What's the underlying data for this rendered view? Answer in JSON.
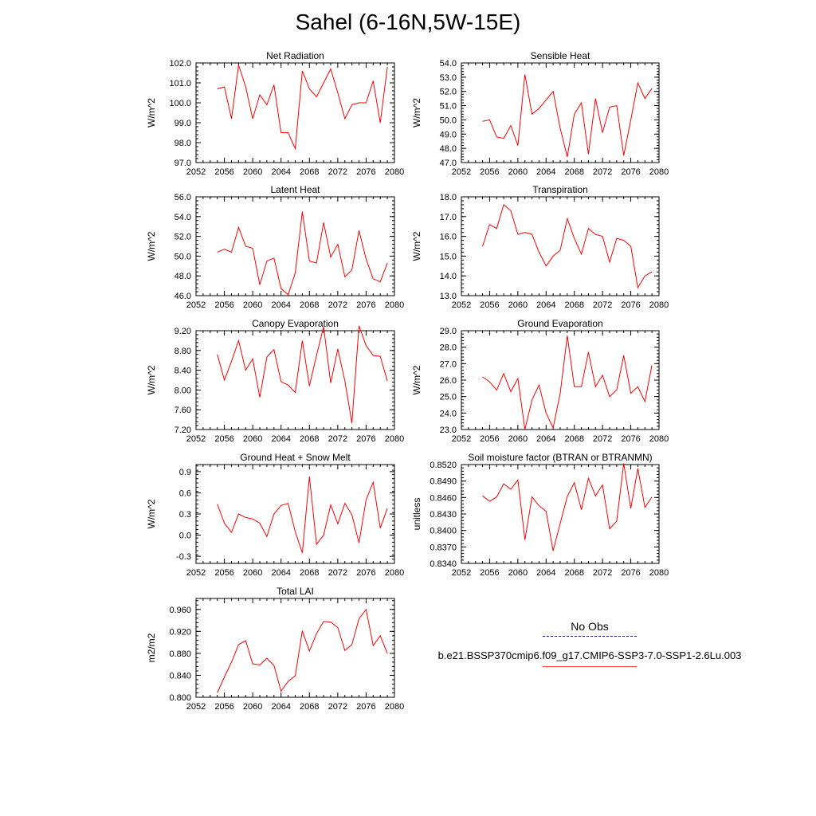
{
  "title": "Sahel (6-16N,5W-15E)",
  "legend": {
    "obs_label": "No Obs",
    "model_label": "b.e21.BSSP370cmip6.f09_g17.CMIP6-SSP3-7.0-SSP1-2.6Lu.003",
    "obs_color": "#2222aa",
    "model_color": "#ff0000"
  },
  "chart_data": [
    {
      "type": "line",
      "title": "Net Radiation",
      "ylabel": "W/m^2",
      "xlim": [
        2052,
        2080
      ],
      "ylim": [
        97.0,
        102.0
      ],
      "xticks": [
        "2052",
        "2056",
        "2060",
        "2064",
        "2068",
        "2072",
        "2076",
        "2080"
      ],
      "yticks": [
        "97.0",
        "98.0",
        "99.0",
        "100.0",
        "101.0",
        "102.0"
      ],
      "x": [
        2055,
        2056,
        2057,
        2058,
        2059,
        2060,
        2061,
        2062,
        2063,
        2064,
        2065,
        2066,
        2067,
        2068,
        2069,
        2070,
        2071,
        2072,
        2073,
        2074,
        2075,
        2076,
        2077,
        2078,
        2079
      ],
      "series": [
        {
          "values": [
            100.7,
            100.8,
            99.2,
            101.9,
            100.8,
            99.2,
            100.4,
            99.9,
            100.9,
            98.5,
            98.5,
            97.7,
            101.6,
            100.7,
            100.3,
            101.0,
            101.7,
            100.5,
            99.2,
            99.9,
            100.0,
            100.0,
            101.1,
            99.0,
            101.8
          ]
        }
      ]
    },
    {
      "type": "line",
      "title": "Sensible Heat",
      "ylabel": "W/m^2",
      "xlim": [
        2052,
        2080
      ],
      "ylim": [
        47.0,
        54.0
      ],
      "xticks": [
        "2052",
        "2056",
        "2060",
        "2064",
        "2068",
        "2072",
        "2076",
        "2080"
      ],
      "yticks": [
        "47.0",
        "48.0",
        "49.0",
        "50.0",
        "51.0",
        "52.0",
        "53.0",
        "54.0"
      ],
      "x": [
        2055,
        2056,
        2057,
        2058,
        2059,
        2060,
        2061,
        2062,
        2063,
        2064,
        2065,
        2066,
        2067,
        2068,
        2069,
        2070,
        2071,
        2072,
        2073,
        2074,
        2075,
        2076,
        2077,
        2078,
        2079
      ],
      "series": [
        {
          "values": [
            49.9,
            50.0,
            48.8,
            48.7,
            49.6,
            48.2,
            53.2,
            50.4,
            50.8,
            51.4,
            52.0,
            49.4,
            47.4,
            50.4,
            51.2,
            47.6,
            51.5,
            49.1,
            50.9,
            51.0,
            47.5,
            50.0,
            52.6,
            51.5,
            52.2
          ]
        }
      ]
    },
    {
      "type": "line",
      "title": "Latent Heat",
      "ylabel": "W/m^2",
      "xlim": [
        2052,
        2080
      ],
      "ylim": [
        46.0,
        56.0
      ],
      "xticks": [
        "2052",
        "2056",
        "2060",
        "2064",
        "2068",
        "2072",
        "2076",
        "2080"
      ],
      "yticks": [
        "46.0",
        "48.0",
        "50.0",
        "52.0",
        "54.0",
        "56.0"
      ],
      "x": [
        2055,
        2056,
        2057,
        2058,
        2059,
        2060,
        2061,
        2062,
        2063,
        2064,
        2065,
        2066,
        2067,
        2068,
        2069,
        2070,
        2071,
        2072,
        2073,
        2074,
        2075,
        2076,
        2077,
        2078,
        2079
      ],
      "series": [
        {
          "values": [
            50.4,
            50.7,
            50.4,
            52.9,
            51.0,
            50.8,
            47.1,
            49.5,
            49.8,
            46.7,
            46.1,
            48.3,
            54.5,
            49.5,
            49.3,
            53.4,
            49.9,
            51.2,
            47.9,
            48.6,
            52.6,
            49.7,
            47.7,
            47.4,
            49.3
          ]
        }
      ]
    },
    {
      "type": "line",
      "title": "Transpiration",
      "ylabel": "W/m^2",
      "xlim": [
        2052,
        2080
      ],
      "ylim": [
        13.0,
        18.0
      ],
      "xticks": [
        "2052",
        "2056",
        "2060",
        "2064",
        "2068",
        "2072",
        "2076",
        "2080"
      ],
      "yticks": [
        "13.0",
        "14.0",
        "15.0",
        "16.0",
        "17.0",
        "18.0"
      ],
      "x": [
        2055,
        2056,
        2057,
        2058,
        2059,
        2060,
        2061,
        2062,
        2063,
        2064,
        2065,
        2066,
        2067,
        2068,
        2069,
        2070,
        2071,
        2072,
        2073,
        2074,
        2075,
        2076,
        2077,
        2078,
        2079
      ],
      "series": [
        {
          "values": [
            15.5,
            16.6,
            16.4,
            17.6,
            17.3,
            16.1,
            16.2,
            16.1,
            15.2,
            14.5,
            15.0,
            15.3,
            16.9,
            15.9,
            15.1,
            16.4,
            16.1,
            16.0,
            14.7,
            15.9,
            15.8,
            15.5,
            13.4,
            14.0,
            14.2
          ]
        }
      ]
    },
    {
      "type": "line",
      "title": "Canopy Evaporation",
      "ylabel": "W/m^2",
      "xlim": [
        2052,
        2080
      ],
      "ylim": [
        7.2,
        9.2
      ],
      "xticks": [
        "2052",
        "2056",
        "2060",
        "2064",
        "2068",
        "2072",
        "2076",
        "2080"
      ],
      "yticks": [
        "7.20",
        "7.60",
        "8.00",
        "8.40",
        "8.80",
        "9.20"
      ],
      "x": [
        2055,
        2056,
        2057,
        2058,
        2059,
        2060,
        2061,
        2062,
        2063,
        2064,
        2065,
        2066,
        2067,
        2068,
        2069,
        2070,
        2071,
        2072,
        2073,
        2074,
        2075,
        2076,
        2077,
        2078,
        2079
      ],
      "series": [
        {
          "values": [
            8.72,
            8.2,
            8.58,
            9.0,
            8.4,
            8.63,
            7.85,
            8.67,
            8.82,
            8.17,
            8.1,
            7.95,
            9.0,
            8.08,
            8.7,
            9.28,
            8.14,
            8.83,
            8.18,
            7.33,
            9.3,
            8.9,
            8.7,
            8.68,
            8.18
          ]
        }
      ]
    },
    {
      "type": "line",
      "title": "Ground Evaporation",
      "ylabel": "W/m^2",
      "xlim": [
        2052,
        2080
      ],
      "ylim": [
        23.0,
        29.0
      ],
      "xticks": [
        "2052",
        "2056",
        "2060",
        "2064",
        "2068",
        "2072",
        "2076",
        "2080"
      ],
      "yticks": [
        "23.0",
        "24.0",
        "25.0",
        "26.0",
        "27.0",
        "28.0",
        "29.0"
      ],
      "x": [
        2055,
        2056,
        2057,
        2058,
        2059,
        2060,
        2061,
        2062,
        2063,
        2064,
        2065,
        2066,
        2067,
        2068,
        2069,
        2070,
        2071,
        2072,
        2073,
        2074,
        2075,
        2076,
        2077,
        2078,
        2079
      ],
      "series": [
        {
          "values": [
            26.2,
            25.9,
            25.4,
            26.4,
            25.3,
            26.1,
            23.0,
            24.8,
            25.7,
            24.0,
            23.1,
            25.2,
            28.7,
            25.6,
            25.6,
            27.7,
            25.6,
            26.3,
            25.0,
            25.4,
            27.5,
            25.2,
            25.6,
            24.7,
            26.9
          ]
        }
      ]
    },
    {
      "type": "line",
      "title": "Ground Heat + Snow Melt",
      "ylabel": "W/m^2",
      "xlim": [
        2052,
        2080
      ],
      "ylim": [
        -0.4,
        1.0
      ],
      "xticks": [
        "2052",
        "2056",
        "2060",
        "2064",
        "2068",
        "2072",
        "2076",
        "2080"
      ],
      "yticks": [
        "-0.3",
        "0.0",
        "0.3",
        "0.6",
        "0.9"
      ],
      "ytick_values": [
        -0.3,
        0.0,
        0.3,
        0.6,
        0.9
      ],
      "x": [
        2055,
        2056,
        2057,
        2058,
        2059,
        2060,
        2061,
        2062,
        2063,
        2064,
        2065,
        2066,
        2067,
        2068,
        2069,
        2070,
        2071,
        2072,
        2073,
        2074,
        2075,
        2076,
        2077,
        2078,
        2079
      ],
      "series": [
        {
          "values": [
            0.44,
            0.17,
            0.04,
            0.3,
            0.25,
            0.23,
            0.17,
            -0.02,
            0.3,
            0.42,
            0.45,
            0.05,
            -0.25,
            0.83,
            -0.13,
            0.0,
            0.43,
            0.16,
            0.45,
            0.29,
            -0.11,
            0.5,
            0.75,
            0.1,
            0.38
          ]
        }
      ]
    },
    {
      "type": "line",
      "title": "Soil moisture factor (BTRAN or BTRANMN)",
      "ylabel": "unitless",
      "xlim": [
        2052,
        2080
      ],
      "ylim": [
        0.834,
        0.852
      ],
      "xticks": [
        "2052",
        "2056",
        "2060",
        "2064",
        "2068",
        "2072",
        "2076",
        "2080"
      ],
      "yticks": [
        "0.8340",
        "0.8370",
        "0.8400",
        "0.8430",
        "0.8460",
        "0.8490",
        "0.8520"
      ],
      "x": [
        2055,
        2056,
        2057,
        2058,
        2059,
        2060,
        2061,
        2062,
        2063,
        2064,
        2065,
        2066,
        2067,
        2068,
        2069,
        2070,
        2071,
        2072,
        2073,
        2074,
        2075,
        2076,
        2077,
        2078,
        2079
      ],
      "series": [
        {
          "values": [
            0.8463,
            0.8453,
            0.8461,
            0.8485,
            0.8475,
            0.8492,
            0.8383,
            0.8461,
            0.8445,
            0.8435,
            0.8363,
            0.8413,
            0.8462,
            0.8487,
            0.8438,
            0.8495,
            0.8463,
            0.8483,
            0.8403,
            0.8417,
            0.8522,
            0.844,
            0.8513,
            0.8442,
            0.8461
          ]
        }
      ]
    },
    {
      "type": "line",
      "title": "Total LAI",
      "ylabel": "m2/m2",
      "xlim": [
        2052,
        2080
      ],
      "ylim": [
        0.8,
        0.98
      ],
      "xticks": [
        "2052",
        "2056",
        "2060",
        "2064",
        "2068",
        "2072",
        "2076",
        "2080"
      ],
      "yticks": [
        "0.800",
        "0.840",
        "0.880",
        "0.920",
        "0.960"
      ],
      "ytick_values": [
        0.8,
        0.84,
        0.88,
        0.92,
        0.96
      ],
      "x": [
        2055,
        2056,
        2057,
        2058,
        2059,
        2060,
        2061,
        2062,
        2063,
        2064,
        2065,
        2066,
        2067,
        2068,
        2069,
        2070,
        2071,
        2072,
        2073,
        2074,
        2075,
        2076,
        2077,
        2078,
        2079
      ],
      "series": [
        {
          "values": [
            0.808,
            0.837,
            0.864,
            0.896,
            0.903,
            0.861,
            0.859,
            0.871,
            0.858,
            0.811,
            0.829,
            0.839,
            0.921,
            0.884,
            0.916,
            0.938,
            0.937,
            0.927,
            0.885,
            0.896,
            0.943,
            0.96,
            0.894,
            0.912,
            0.88
          ]
        }
      ]
    }
  ]
}
